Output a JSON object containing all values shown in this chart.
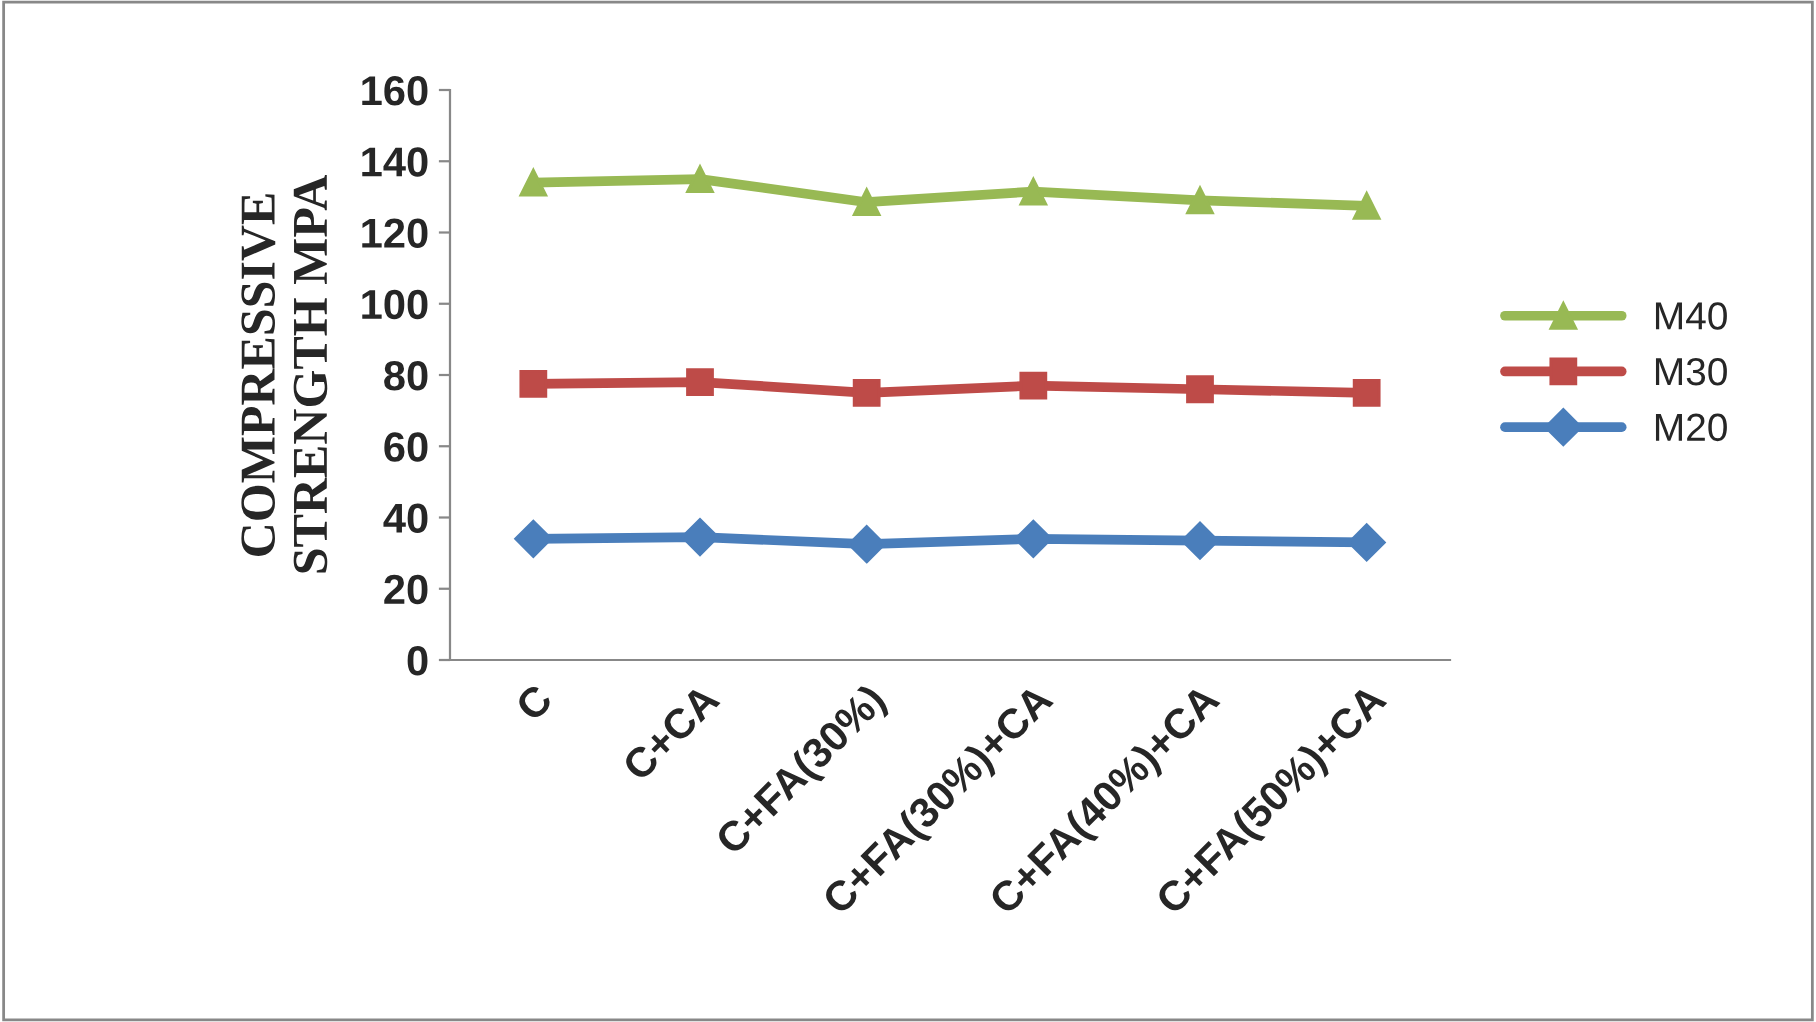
{
  "chart_data": {
    "type": "line",
    "ylabel": "COMPRESSIVE\nSTRENGTH MPA",
    "categories": [
      "C",
      "C+CA",
      "C+FA(30%)",
      "C+FA(30%)+CA",
      "C+FA(40%)+CA",
      "C+FA(50%)+CA"
    ],
    "series": [
      {
        "name": "M20",
        "color": "#4a7ebb",
        "marker": "diamond",
        "values": [
          34,
          34.5,
          32.5,
          34,
          33.5,
          33
        ]
      },
      {
        "name": "M30",
        "color": "#be4b48",
        "marker": "square",
        "values": [
          77.5,
          78,
          75,
          77,
          76,
          75
        ]
      },
      {
        "name": "M40",
        "color": "#98b954",
        "marker": "triangle",
        "values": [
          134,
          135,
          128.5,
          131.5,
          129,
          127.5
        ]
      }
    ],
    "ylim": [
      0,
      160
    ],
    "yticks": [
      0,
      20,
      40,
      60,
      80,
      100,
      120,
      140,
      160
    ],
    "grid": false,
    "legend": "right"
  }
}
